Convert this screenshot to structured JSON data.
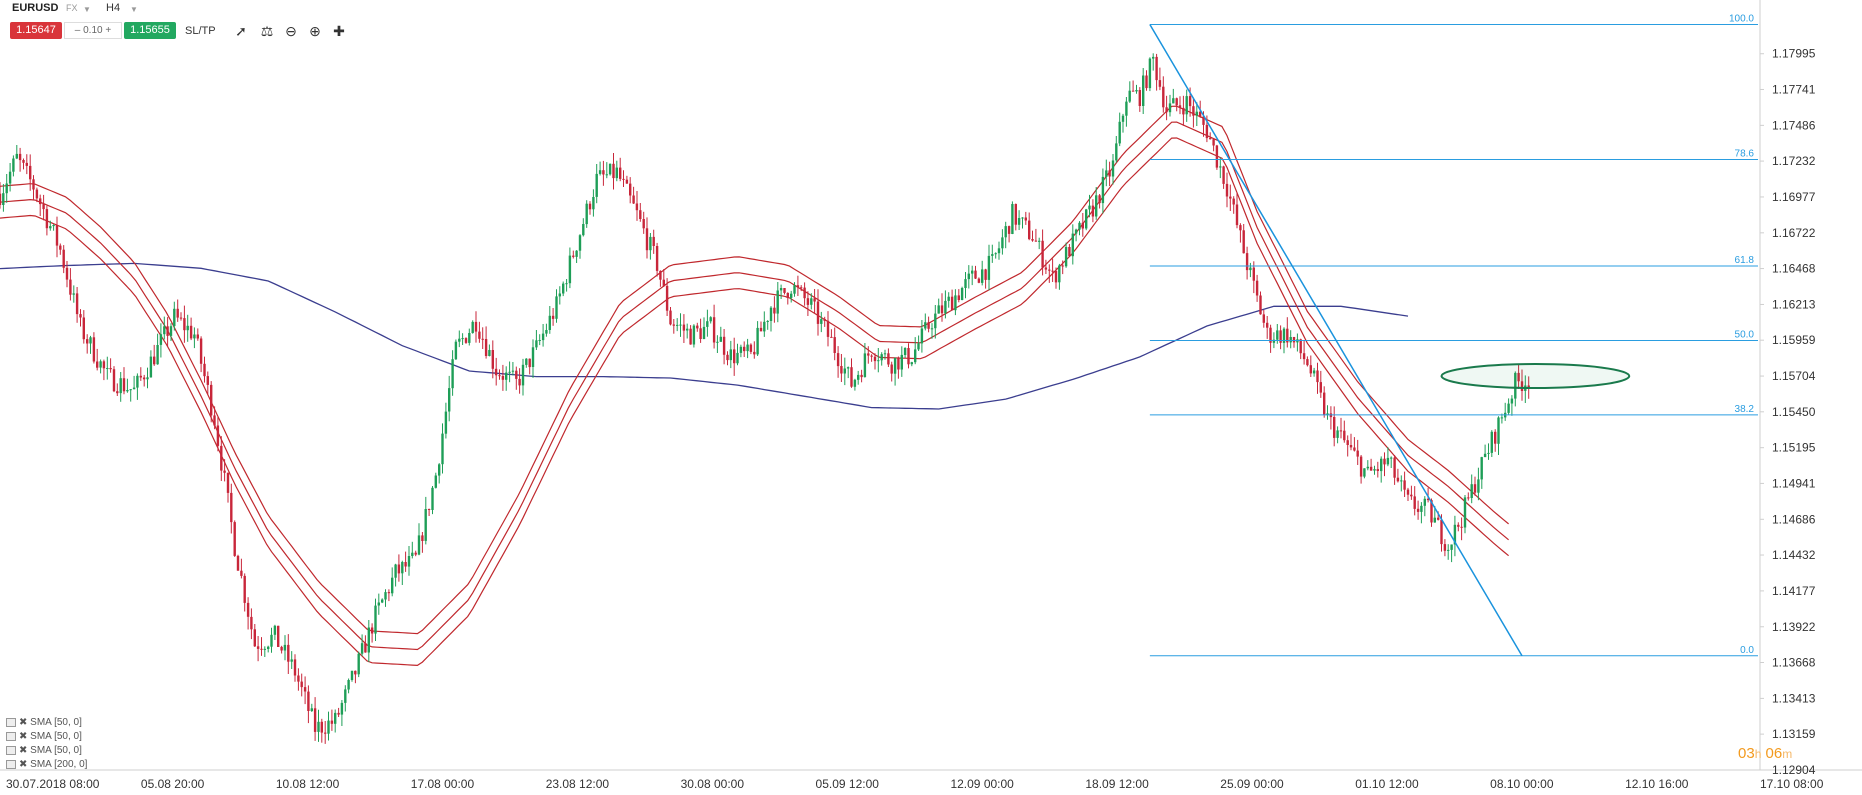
{
  "toolbar": {
    "symbol": "EURUSD",
    "market": "FX",
    "timeframe": "H4",
    "bid": "1.15647",
    "spread": "0.10",
    "ask": "1.15655",
    "sltp_label": "SL/TP",
    "tools": [
      "line-chart-icon",
      "candles-icon",
      "zoom-out-icon",
      "zoom-in-icon",
      "crosshair-icon"
    ]
  },
  "legend": [
    "SMA [50, 0]",
    "SMA [50, 0]",
    "SMA [50, 0]",
    "SMA [200, 0]"
  ],
  "timer": {
    "hours": "03",
    "hours_unit": "h",
    "minutes": "06",
    "minutes_unit": "m"
  },
  "colors": {
    "up": "#1e9e57",
    "down": "#c8263a",
    "sma50": "#c0282d",
    "sma200": "#3b3e8f",
    "fib": "#2a9de0",
    "trend": "#1a93dd",
    "ellipse": "#1a7a4c"
  },
  "chart_data": {
    "type": "candlestick",
    "symbol": "EURUSD",
    "timeframe": "H4",
    "ylim": [
      1.12904,
      1.18249
    ],
    "y_ticks": [
      "1.17995",
      "1.17741",
      "1.17486",
      "1.17232",
      "1.16977",
      "1.16722",
      "1.16468",
      "1.16213",
      "1.15959",
      "1.15704",
      "1.15450",
      "1.15195",
      "1.14941",
      "1.14686",
      "1.14432",
      "1.14177",
      "1.13922",
      "1.13668",
      "1.13413",
      "1.13159",
      "1.12904"
    ],
    "x_ticks": [
      "30.07.2018 08:00",
      "05.08 20:00",
      "10.08 12:00",
      "17.08 00:00",
      "23.08 12:00",
      "30.08 00:00",
      "05.09 12:00",
      "12.09 00:00",
      "18.09 12:00",
      "25.09 00:00",
      "01.10 12:00",
      "08.10 00:00",
      "12.10 16:00",
      "17.10 08:00"
    ],
    "fibonacci": {
      "levels": [
        {
          "label": "100.0",
          "price": 1.18203
        },
        {
          "label": "78.6",
          "price": 1.17243
        },
        {
          "label": "61.8",
          "price": 1.16486
        },
        {
          "label": "50.0",
          "price": 1.15957
        },
        {
          "label": "38.2",
          "price": 1.15428
        },
        {
          "label": "0.0",
          "price": 1.13716
        }
      ]
    },
    "trendline": [
      {
        "time_index": 343,
        "price": 1.18203
      },
      {
        "time_index": 454,
        "price": 1.13716
      }
    ],
    "resistance_zone": {
      "price": 1.15704
    },
    "sma200_path": [
      [
        0,
        1.16468
      ],
      [
        20,
        1.1649
      ],
      [
        40,
        1.16505
      ],
      [
        60,
        1.1647
      ],
      [
        80,
        1.1638
      ],
      [
        100,
        1.1616
      ],
      [
        120,
        1.1592
      ],
      [
        140,
        1.1574
      ],
      [
        160,
        1.157
      ],
      [
        180,
        1.157
      ],
      [
        200,
        1.1569
      ],
      [
        220,
        1.1564
      ],
      [
        240,
        1.1556
      ],
      [
        260,
        1.1548
      ],
      [
        280,
        1.1547
      ],
      [
        300,
        1.1554
      ],
      [
        320,
        1.1568
      ],
      [
        340,
        1.1584
      ],
      [
        360,
        1.1606
      ],
      [
        380,
        1.162
      ],
      [
        400,
        1.162
      ],
      [
        420,
        1.1613
      ]
    ],
    "sma50_mid_path": [
      [
        0,
        1.1694
      ],
      [
        10,
        1.1696
      ],
      [
        20,
        1.1686
      ],
      [
        30,
        1.1665
      ],
      [
        40,
        1.164
      ],
      [
        50,
        1.1603
      ],
      [
        60,
        1.1556
      ],
      [
        70,
        1.1505
      ],
      [
        80,
        1.146
      ],
      [
        95,
        1.1413
      ],
      [
        110,
        1.1378
      ],
      [
        125,
        1.1376
      ],
      [
        140,
        1.1412
      ],
      [
        155,
        1.1476
      ],
      [
        170,
        1.155
      ],
      [
        185,
        1.1611
      ],
      [
        200,
        1.1638
      ],
      [
        220,
        1.1644
      ],
      [
        235,
        1.1638
      ],
      [
        250,
        1.1616
      ],
      [
        262,
        1.1595
      ],
      [
        275,
        1.1594
      ],
      [
        290,
        1.1614
      ],
      [
        305,
        1.1633
      ],
      [
        320,
        1.1669
      ],
      [
        335,
        1.1717
      ],
      [
        350,
        1.1752
      ],
      [
        365,
        1.1736
      ],
      [
        375,
        1.1676
      ],
      [
        390,
        1.1605
      ],
      [
        405,
        1.1555
      ],
      [
        420,
        1.1514
      ],
      [
        432,
        1.1492
      ],
      [
        445,
        1.1464
      ],
      [
        450,
        1.1454
      ]
    ],
    "sma50_band_offset": 0.00113
  }
}
